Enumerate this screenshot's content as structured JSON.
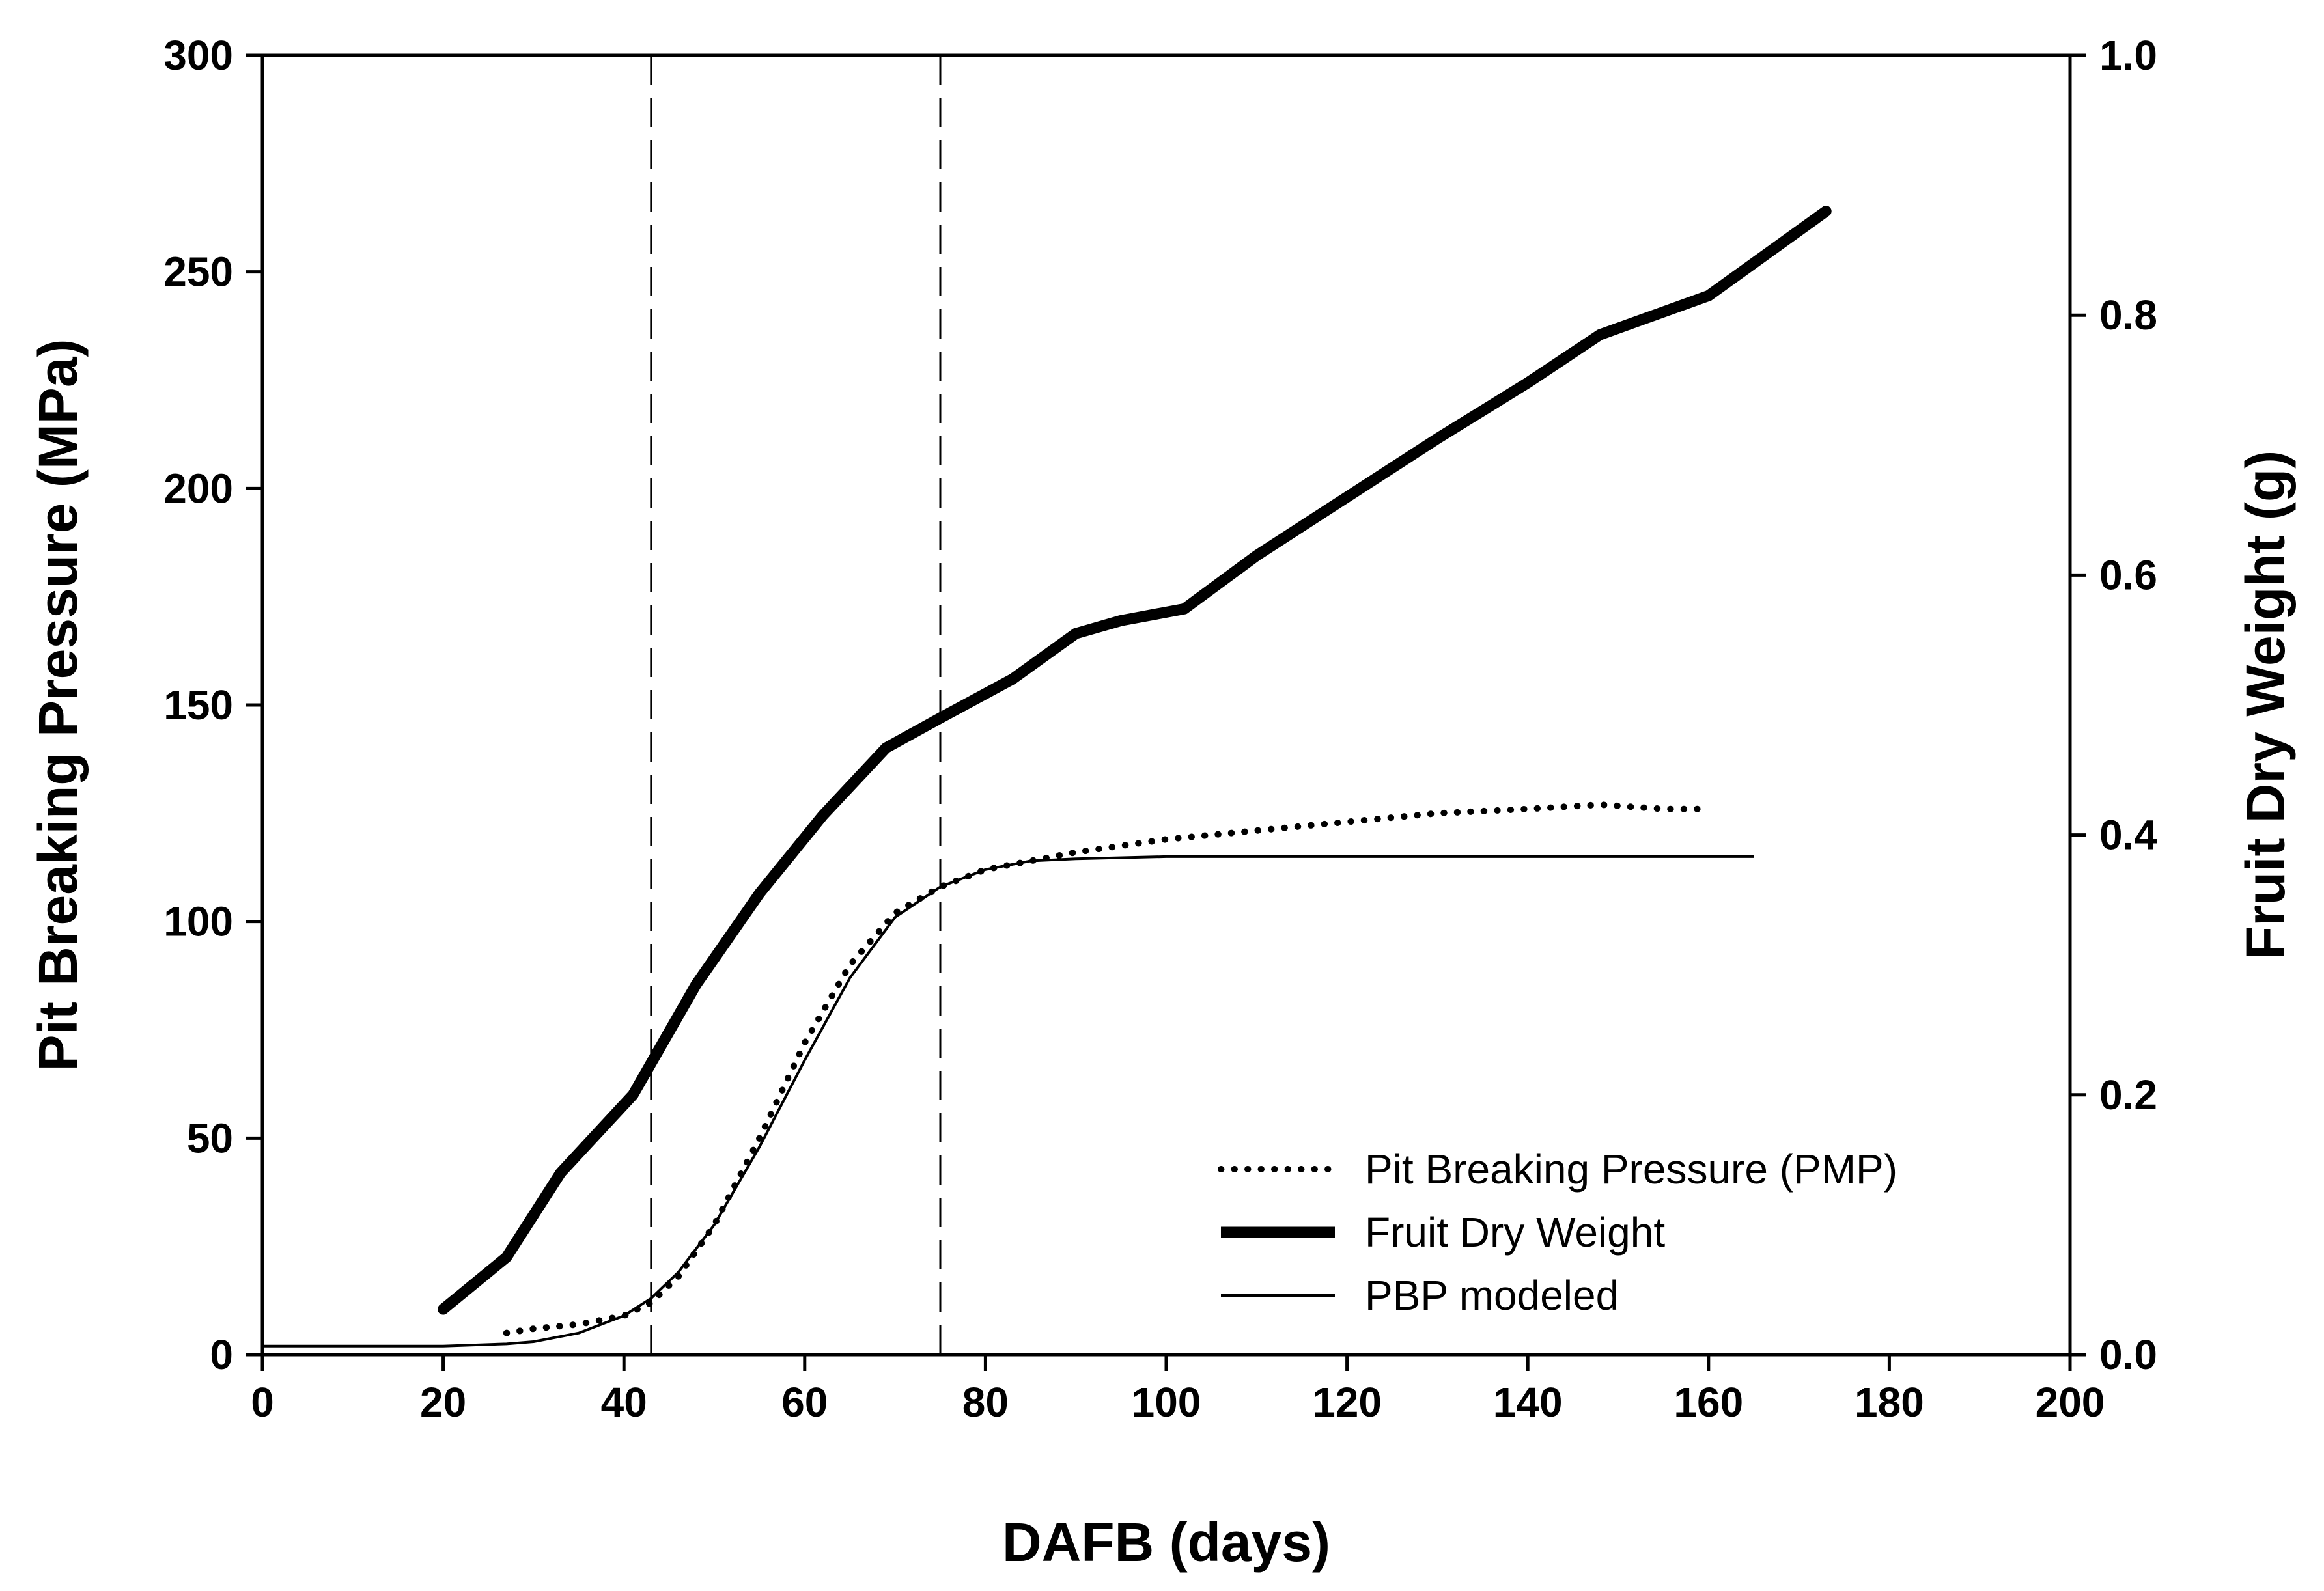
{
  "chart_data": {
    "type": "line",
    "title": "",
    "xlabel": "DAFB (days)",
    "ylabel": "Pit Breaking Pressure (MPa)",
    "y2label": "Fruit Dry Weight (g)",
    "xlim": [
      0,
      200
    ],
    "ylim": [
      0,
      300
    ],
    "y2lim": [
      0,
      1.0
    ],
    "xticks": [
      0,
      20,
      40,
      60,
      80,
      100,
      120,
      140,
      160,
      180,
      200
    ],
    "yticks": [
      0,
      50,
      100,
      150,
      200,
      250,
      300
    ],
    "y2ticks": [
      "0.0",
      "0.2",
      "0.4",
      "0.6",
      "0.8",
      "1.0"
    ],
    "grid": false,
    "legend_position": "bottom-right",
    "vertical_reference_lines": [
      43,
      75
    ],
    "series": [
      {
        "name": "Pit Breaking Pressure (PMP)",
        "style": "dotted",
        "axis": "left",
        "x": [
          27,
          30,
          35,
          40,
          43,
          46,
          50,
          55,
          60,
          65,
          70,
          75,
          80,
          85,
          90,
          100,
          110,
          120,
          130,
          140,
          148,
          155,
          160
        ],
        "y": [
          5,
          6,
          7,
          9,
          12,
          18,
          30,
          50,
          72,
          90,
          102,
          108,
          112,
          114,
          116,
          119,
          121,
          123,
          125,
          126,
          127,
          126,
          126
        ]
      },
      {
        "name": "Fruit Dry Weight",
        "style": "thick",
        "axis": "right",
        "x": [
          20,
          27,
          33,
          41,
          48,
          55,
          62,
          69,
          75,
          83,
          90,
          95,
          102,
          110,
          120,
          130,
          140,
          148,
          160,
          173
        ],
        "y": [
          0.035,
          0.075,
          0.14,
          0.2,
          0.285,
          0.355,
          0.415,
          0.467,
          0.49,
          0.52,
          0.555,
          0.565,
          0.574,
          0.615,
          0.66,
          0.705,
          0.748,
          0.785,
          0.815,
          0.88
        ]
      },
      {
        "name": "PBP modeled",
        "style": "solid",
        "axis": "left",
        "x": [
          0,
          20,
          27,
          30,
          35,
          40,
          43,
          46,
          50,
          55,
          60,
          65,
          70,
          75,
          80,
          85,
          90,
          100,
          110,
          120,
          140,
          160,
          165
        ],
        "y": [
          2,
          2,
          2.5,
          3,
          5,
          9,
          13,
          19,
          30,
          48,
          68,
          87,
          101,
          108,
          112,
          114,
          114.5,
          115,
          115,
          115,
          115,
          115,
          115
        ]
      }
    ]
  }
}
